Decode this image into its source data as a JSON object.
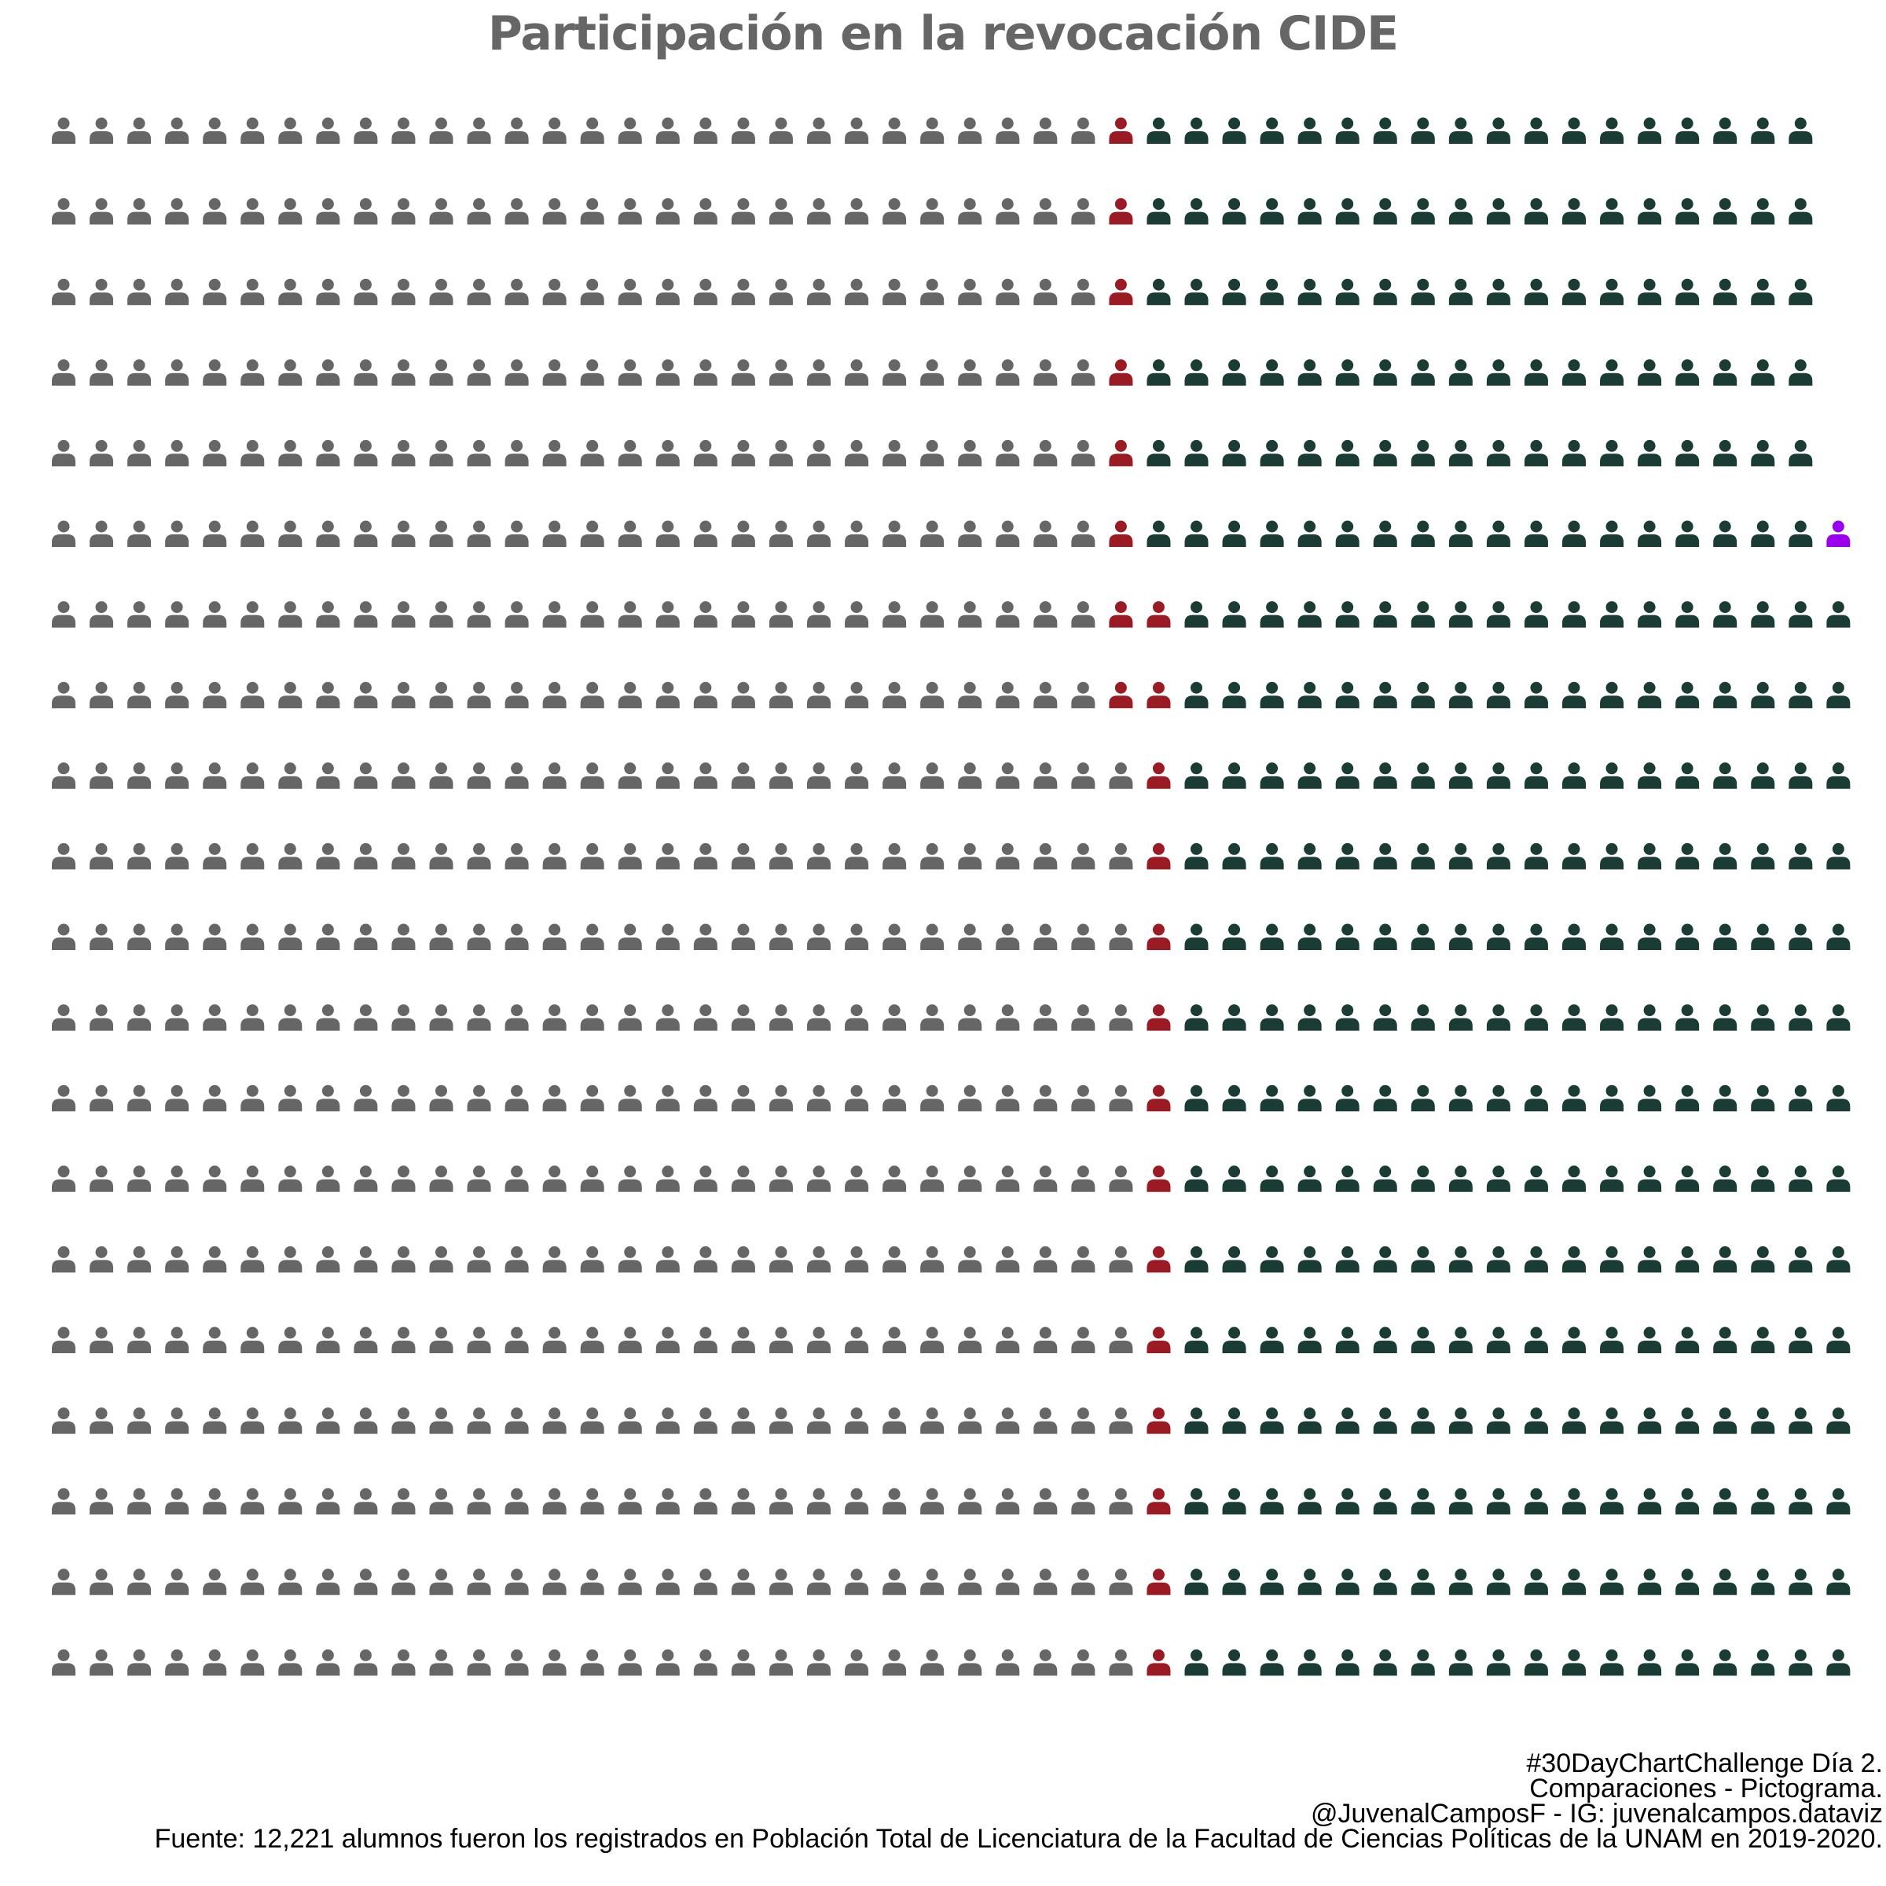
{
  "chart_data": {
    "type": "pictogram",
    "title": "Participación en la revocación CIDE",
    "rows": [
      {
        "no_participa": 28,
        "si_revocacion": 1,
        "no_revocacion": 18,
        "nulo": 0
      },
      {
        "no_participa": 28,
        "si_revocacion": 1,
        "no_revocacion": 18,
        "nulo": 0
      },
      {
        "no_participa": 28,
        "si_revocacion": 1,
        "no_revocacion": 18,
        "nulo": 0
      },
      {
        "no_participa": 28,
        "si_revocacion": 1,
        "no_revocacion": 18,
        "nulo": 0
      },
      {
        "no_participa": 28,
        "si_revocacion": 1,
        "no_revocacion": 18,
        "nulo": 0
      },
      {
        "no_participa": 28,
        "si_revocacion": 1,
        "no_revocacion": 18,
        "nulo": 1
      },
      {
        "no_participa": 28,
        "si_revocacion": 2,
        "no_revocacion": 18,
        "nulo": 0
      },
      {
        "no_participa": 28,
        "si_revocacion": 2,
        "no_revocacion": 18,
        "nulo": 0
      },
      {
        "no_participa": 29,
        "si_revocacion": 1,
        "no_revocacion": 18,
        "nulo": 0
      },
      {
        "no_participa": 29,
        "si_revocacion": 1,
        "no_revocacion": 18,
        "nulo": 0
      },
      {
        "no_participa": 29,
        "si_revocacion": 1,
        "no_revocacion": 18,
        "nulo": 0
      },
      {
        "no_participa": 29,
        "si_revocacion": 1,
        "no_revocacion": 18,
        "nulo": 0
      },
      {
        "no_participa": 29,
        "si_revocacion": 1,
        "no_revocacion": 18,
        "nulo": 0
      },
      {
        "no_participa": 29,
        "si_revocacion": 1,
        "no_revocacion": 18,
        "nulo": 0
      },
      {
        "no_participa": 29,
        "si_revocacion": 1,
        "no_revocacion": 18,
        "nulo": 0
      },
      {
        "no_participa": 29,
        "si_revocacion": 1,
        "no_revocacion": 18,
        "nulo": 0
      },
      {
        "no_participa": 29,
        "si_revocacion": 1,
        "no_revocacion": 18,
        "nulo": 0
      },
      {
        "no_participa": 29,
        "si_revocacion": 1,
        "no_revocacion": 18,
        "nulo": 0
      },
      {
        "no_participa": 29,
        "si_revocacion": 1,
        "no_revocacion": 18,
        "nulo": 0
      },
      {
        "no_participa": 29,
        "si_revocacion": 1,
        "no_revocacion": 18,
        "nulo": 0
      }
    ],
    "category_order": [
      "no_participa",
      "si_revocacion",
      "no_revocacion",
      "nulo"
    ],
    "colors": {
      "no_participa": "#666666",
      "si_revocacion": "#9b1b24",
      "no_revocacion": "#1a3c34",
      "nulo": "#9900ee"
    },
    "icon": "person-icon",
    "caption_lines": [
      "#30DayChartChallenge Día 2.",
      "Comparaciones - Pictograma.",
      "@JuvenalCamposF - IG: juvenalcampos.dataviz",
      "Fuente: 12,221 alumnos fueron los registrados en Población Total de Licenciatura de la Facultad de Ciencias Políticas de la UNAM en 2019-2020."
    ]
  }
}
